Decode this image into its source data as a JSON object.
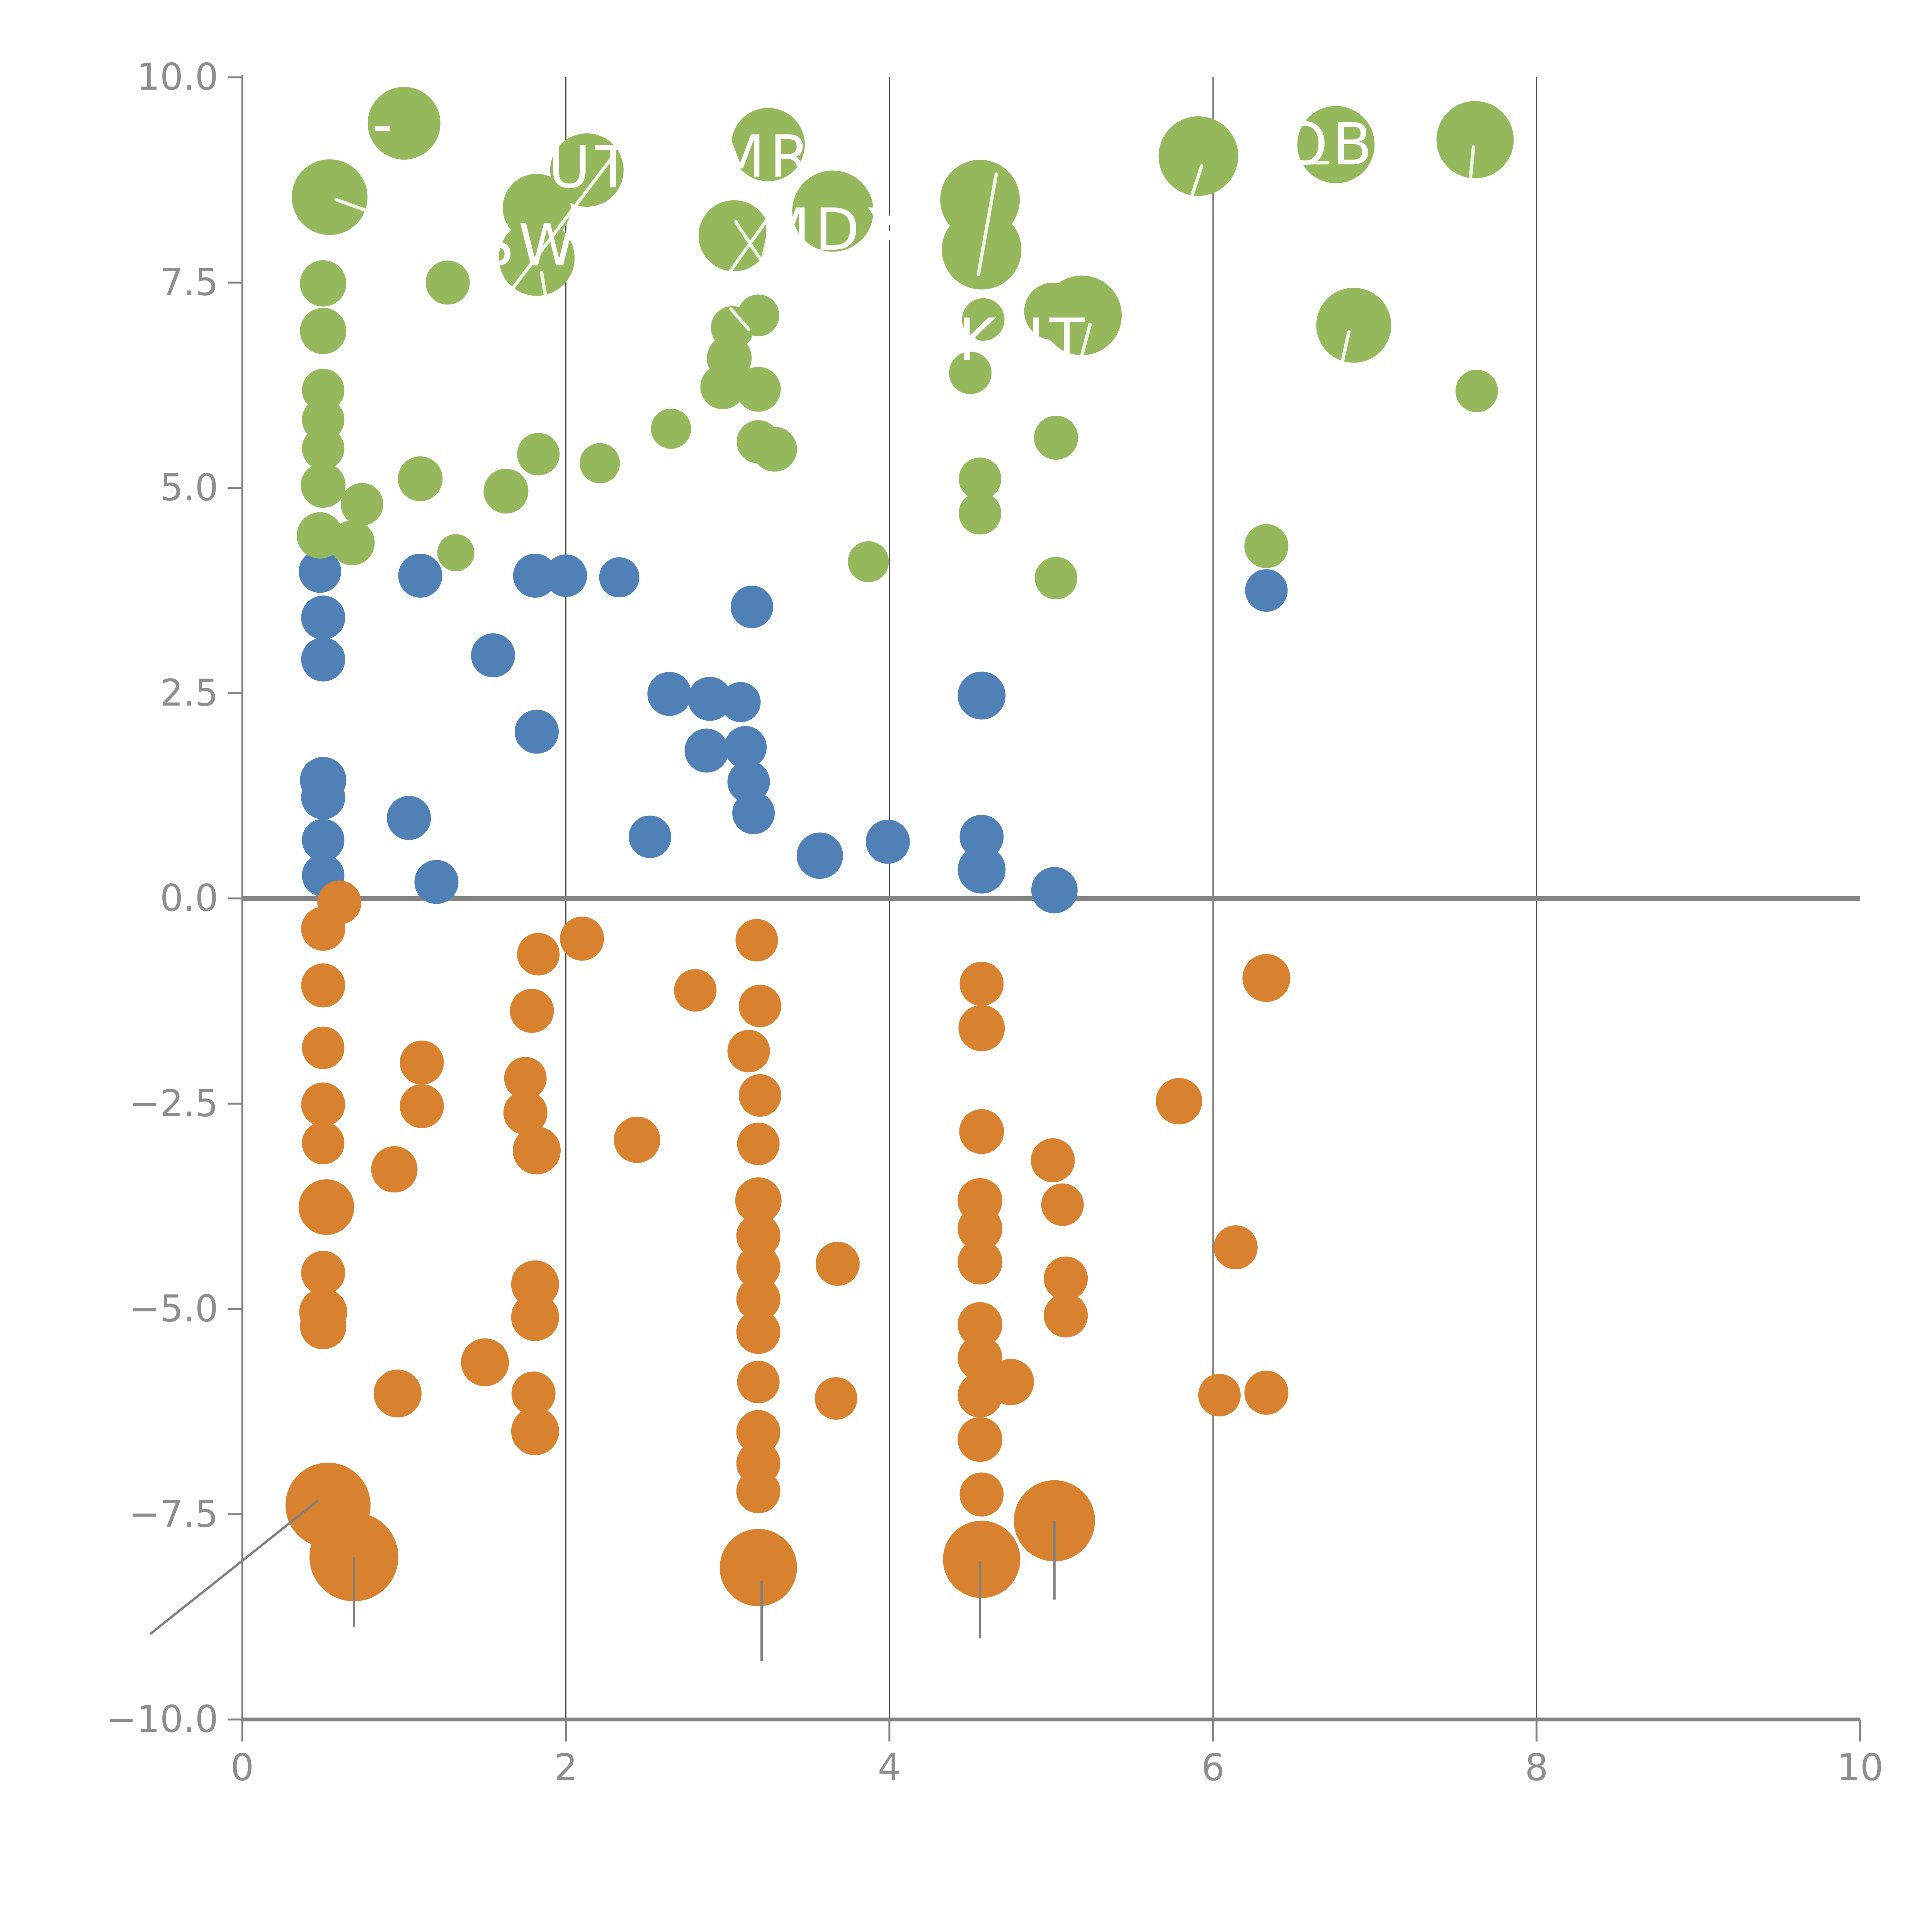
{
  "chart_data": {
    "type": "scatter",
    "title": "",
    "xlabel": "",
    "ylabel": "",
    "xlim": [
      0,
      10
    ],
    "ylim": [
      -10,
      10
    ],
    "grid": "vertical-only",
    "legend": "none",
    "xticks": {
      "values": [
        0,
        2,
        4,
        6,
        8,
        10
      ],
      "labels": [
        "0",
        "2",
        "4",
        "6",
        "8",
        "10"
      ]
    },
    "yticks": {
      "values": [
        10,
        7.5,
        5,
        2.5,
        0,
        -2.5,
        -5,
        -7.5,
        -10
      ],
      "labels": [
        "10.0",
        "7.5",
        "5.0",
        "2.5",
        "0.0",
        "−2.5",
        "−5.0",
        "−7.5",
        "−10.0"
      ]
    },
    "vertical_gridlines_at": [
      2,
      4,
      6,
      8
    ],
    "zero_line_y": 0,
    "colors": {
      "green": "#95b85c",
      "blue": "#4f80b6",
      "orange": "#d8822f",
      "axis": "#848484",
      "tick_label": "#8e8e8e",
      "gridline": "#4a4a4a",
      "leader_gray": "#808080",
      "bubble_label": "#ffffff"
    },
    "series": [
      {
        "name": "blue-points",
        "color_key": "blue",
        "points": [
          [
            0.48,
            3.98,
            55
          ],
          [
            1.1,
            3.93,
            57
          ],
          [
            1.81,
            3.93,
            57
          ],
          [
            2.0,
            3.93,
            55
          ],
          [
            2.33,
            3.91,
            52
          ],
          [
            6.33,
            3.75,
            55
          ],
          [
            3.15,
            3.55,
            55
          ],
          [
            0.5,
            3.42,
            57
          ],
          [
            0.5,
            2.91,
            57
          ],
          [
            1.55,
            2.96,
            57
          ],
          [
            4.57,
            2.47,
            62
          ],
          [
            2.64,
            2.49,
            57
          ],
          [
            2.89,
            2.43,
            57
          ],
          [
            3.08,
            2.39,
            52
          ],
          [
            1.82,
            2.03,
            57
          ],
          [
            2.87,
            1.8,
            57
          ],
          [
            3.11,
            1.84,
            55
          ],
          [
            3.13,
            1.42,
            55
          ],
          [
            0.5,
            1.44,
            60
          ],
          [
            0.5,
            1.23,
            57
          ],
          [
            1.03,
            0.98,
            57
          ],
          [
            3.16,
            1.04,
            55
          ],
          [
            0.5,
            0.71,
            55
          ],
          [
            2.52,
            0.75,
            55
          ],
          [
            3.99,
            0.69,
            57
          ],
          [
            4.57,
            0.75,
            57
          ],
          [
            1.2,
            0.2,
            57
          ],
          [
            3.57,
            0.52,
            60
          ],
          [
            4.57,
            0.35,
            62
          ],
          [
            5.02,
            0.1,
            60
          ],
          [
            0.5,
            0.28,
            55
          ]
        ]
      },
      {
        "name": "green-points",
        "color_key": "green",
        "points": [
          [
            1.0,
            9.44,
            94
          ],
          [
            0.54,
            8.54,
            98
          ],
          [
            2.13,
            8.87,
            95
          ],
          [
            1.82,
            8.41,
            88
          ],
          [
            1.82,
            7.8,
            98
          ],
          [
            3.25,
            9.18,
            95
          ],
          [
            3.04,
            8.07,
            92
          ],
          [
            3.65,
            8.37,
            105
          ],
          [
            4.56,
            8.51,
            103
          ],
          [
            4.57,
            7.9,
            103
          ],
          [
            5.91,
            9.04,
            103
          ],
          [
            6.76,
            9.18,
            100
          ],
          [
            7.62,
            9.24,
            100
          ],
          [
            6.87,
            6.98,
            97
          ],
          [
            5.19,
            7.1,
            103
          ],
          [
            5.01,
            7.15,
            74
          ],
          [
            4.58,
            7.05,
            55
          ],
          [
            0.5,
            7.49,
            60
          ],
          [
            1.27,
            7.5,
            57
          ],
          [
            0.5,
            6.91,
            60
          ],
          [
            3.19,
            7.1,
            54
          ],
          [
            3.03,
            6.95,
            56
          ],
          [
            3.01,
            6.58,
            58
          ],
          [
            2.97,
            6.23,
            58
          ],
          [
            3.19,
            6.2,
            58
          ],
          [
            4.5,
            6.4,
            55
          ],
          [
            7.63,
            6.18,
            55
          ],
          [
            3.19,
            5.56,
            56
          ],
          [
            3.29,
            5.47,
            58
          ],
          [
            2.65,
            5.72,
            52
          ],
          [
            0.5,
            6.19,
            55
          ],
          [
            0.5,
            5.83,
            55
          ],
          [
            0.5,
            5.48,
            55
          ],
          [
            0.5,
            5.03,
            58
          ],
          [
            1.1,
            5.11,
            58
          ],
          [
            1.63,
            4.96,
            58
          ],
          [
            1.83,
            5.41,
            55
          ],
          [
            2.21,
            5.3,
            52
          ],
          [
            5.03,
            5.61,
            57
          ],
          [
            4.56,
            5.11,
            55
          ],
          [
            4.56,
            4.69,
            55
          ],
          [
            0.74,
            4.8,
            55
          ],
          [
            0.48,
            4.42,
            60
          ],
          [
            0.68,
            4.33,
            58
          ],
          [
            1.32,
            4.21,
            48
          ],
          [
            3.87,
            4.1,
            53
          ],
          [
            5.03,
            3.9,
            55
          ],
          [
            6.33,
            4.29,
            57
          ]
        ]
      },
      {
        "name": "orange-points",
        "color_key": "orange",
        "points": [
          [
            0.6,
            -0.05,
            57
          ],
          [
            0.5,
            -0.37,
            57
          ],
          [
            2.1,
            -0.49,
            57
          ],
          [
            3.18,
            -0.51,
            55
          ],
          [
            1.83,
            -0.68,
            55
          ],
          [
            0.5,
            -1.06,
            57
          ],
          [
            6.33,
            -0.97,
            62
          ],
          [
            4.57,
            -1.04,
            57
          ],
          [
            2.8,
            -1.12,
            55
          ],
          [
            3.2,
            -1.31,
            55
          ],
          [
            1.79,
            -1.37,
            57
          ],
          [
            4.57,
            -1.58,
            60
          ],
          [
            0.5,
            -1.82,
            55
          ],
          [
            3.13,
            -1.86,
            55
          ],
          [
            1.11,
            -2.0,
            57
          ],
          [
            1.75,
            -2.19,
            55
          ],
          [
            3.2,
            -2.4,
            55
          ],
          [
            5.79,
            -2.47,
            60
          ],
          [
            0.5,
            -2.51,
            57
          ],
          [
            1.11,
            -2.53,
            57
          ],
          [
            1.75,
            -2.61,
            57
          ],
          [
            4.57,
            -2.84,
            58
          ],
          [
            2.44,
            -2.94,
            60
          ],
          [
            0.5,
            -2.98,
            55
          ],
          [
            3.19,
            -2.99,
            55
          ],
          [
            1.82,
            -3.07,
            62
          ],
          [
            5.01,
            -3.19,
            57
          ],
          [
            0.94,
            -3.3,
            60
          ],
          [
            4.56,
            -3.68,
            58
          ],
          [
            3.19,
            -3.68,
            60
          ],
          [
            5.07,
            -3.73,
            55
          ],
          [
            0.52,
            -3.76,
            72
          ],
          [
            4.56,
            -4.02,
            58
          ],
          [
            3.19,
            -4.11,
            57
          ],
          [
            6.14,
            -4.25,
            57
          ],
          [
            4.56,
            -4.43,
            58
          ],
          [
            3.68,
            -4.45,
            57
          ],
          [
            3.19,
            -4.49,
            57
          ],
          [
            0.5,
            -4.56,
            57
          ],
          [
            5.09,
            -4.63,
            57
          ],
          [
            1.81,
            -4.7,
            62
          ],
          [
            3.19,
            -4.88,
            57
          ],
          [
            0.5,
            -5.04,
            62
          ],
          [
            5.09,
            -5.08,
            57
          ],
          [
            1.81,
            -5.1,
            62
          ],
          [
            4.56,
            -5.19,
            58
          ],
          [
            0.5,
            -5.21,
            60
          ],
          [
            3.19,
            -5.28,
            57
          ],
          [
            1.5,
            -5.65,
            62
          ],
          [
            4.56,
            -5.6,
            58
          ],
          [
            3.19,
            -5.89,
            55
          ],
          [
            4.75,
            -5.89,
            60
          ],
          [
            0.96,
            -6.03,
            62
          ],
          [
            1.8,
            -6.03,
            57
          ],
          [
            6.04,
            -6.05,
            55
          ],
          [
            4.56,
            -6.05,
            58
          ],
          [
            6.33,
            -6.02,
            57
          ],
          [
            3.67,
            -6.09,
            55
          ],
          [
            1.81,
            -6.49,
            62
          ],
          [
            3.19,
            -6.5,
            57
          ],
          [
            4.56,
            -6.59,
            58
          ],
          [
            3.19,
            -6.88,
            57
          ],
          [
            3.19,
            -7.22,
            57
          ],
          [
            4.57,
            -7.26,
            57
          ],
          [
            0.53,
            -7.39,
            110
          ],
          [
            5.02,
            -7.58,
            105
          ],
          [
            0.69,
            -8.02,
            115
          ],
          [
            4.57,
            -8.05,
            100
          ],
          [
            3.19,
            -8.15,
            100
          ]
        ]
      }
    ],
    "point_labels": [
      {
        "text": "-",
        "x": 0.88,
        "y": 9.42
      },
      {
        "text": "UT",
        "x": 2.16,
        "y": 8.9
      },
      {
        "text": "MR",
        "x": 3.23,
        "y": 9.03
      },
      {
        "text": "SW",
        "x": 1.77,
        "y": 7.95
      },
      {
        "text": "MDX",
        "x": 3.66,
        "y": 8.14
      },
      {
        "text": "KHT",
        "x": 4.83,
        "y": 6.8
      },
      {
        "text": "OB",
        "x": 6.72,
        "y": 9.18
      }
    ],
    "white_leader_lines": [
      [
        2.3,
        9.06,
        1.61,
        7.27
      ],
      [
        0.58,
        8.51,
        0.86,
        8.31
      ],
      [
        3.27,
        8.24,
        3.2,
        7.65
      ],
      [
        3.02,
        7.65,
        3.26,
        8.31
      ],
      [
        3.05,
        8.24,
        3.24,
        7.67
      ],
      [
        1.85,
        7.62,
        1.88,
        7.27
      ],
      [
        4.66,
        8.82,
        4.55,
        7.6
      ],
      [
        5.24,
        6.99,
        5.17,
        6.47
      ],
      [
        5.93,
        8.92,
        5.87,
        8.56
      ],
      [
        6.45,
        8.96,
        6.71,
        8.96
      ],
      [
        7.61,
        9.15,
        7.59,
        8.75
      ],
      [
        6.84,
        6.9,
        6.8,
        6.54
      ],
      [
        3.02,
        7.18,
        3.13,
        6.93
      ]
    ],
    "gray_leader_lines": [
      [
        -0.57,
        -8.96,
        0.47,
        -7.33
      ],
      [
        0.69,
        -8.02,
        0.69,
        -8.87
      ],
      [
        3.21,
        -8.31,
        3.21,
        -9.29
      ],
      [
        4.56,
        -8.07,
        4.56,
        -9.01
      ],
      [
        5.02,
        -7.58,
        5.02,
        -8.54
      ]
    ]
  }
}
